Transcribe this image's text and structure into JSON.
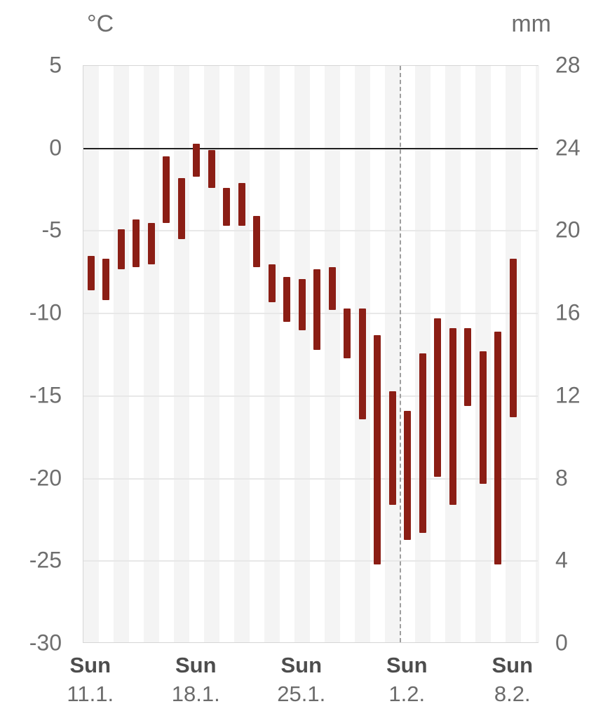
{
  "chart_data": {
    "type": "bar",
    "variant": "daily-temperature-range-meteogram",
    "title": "",
    "left_axis": {
      "label": "°C",
      "max": 5,
      "min": -30,
      "ticks": [
        5,
        0,
        -5,
        -10,
        -15,
        -20,
        -25,
        -30
      ]
    },
    "right_axis": {
      "label": "mm",
      "max": 28,
      "min": 0,
      "ticks": [
        28,
        24,
        20,
        16,
        12,
        8,
        4,
        0
      ]
    },
    "x_axis": {
      "ticks": [
        {
          "weekday": "Sun",
          "date": "11.1.",
          "day_index": 0
        },
        {
          "weekday": "Sun",
          "date": "18.1.",
          "day_index": 7
        },
        {
          "weekday": "Sun",
          "date": "25.1.",
          "day_index": 14
        },
        {
          "weekday": "Sun",
          "date": "1.2.",
          "day_index": 21
        },
        {
          "weekday": "Sun",
          "date": "8.2.",
          "day_index": 28
        }
      ]
    },
    "zero_line_temp": 0,
    "now_divider_day_index": 21,
    "days": [
      {
        "temp_max": -6.5,
        "temp_min": -8.6
      },
      {
        "temp_max": -6.7,
        "temp_min": -9.2
      },
      {
        "temp_max": -4.9,
        "temp_min": -7.3
      },
      {
        "temp_max": -4.3,
        "temp_min": -7.2
      },
      {
        "temp_max": -4.5,
        "temp_min": -7.0
      },
      {
        "temp_max": -0.5,
        "temp_min": -4.5
      },
      {
        "temp_max": -1.8,
        "temp_min": -5.5
      },
      {
        "temp_max": 0.3,
        "temp_min": -1.7
      },
      {
        "temp_max": -0.1,
        "temp_min": -2.4
      },
      {
        "temp_max": -2.4,
        "temp_min": -4.7
      },
      {
        "temp_max": -2.1,
        "temp_min": -4.7
      },
      {
        "temp_max": -4.1,
        "temp_min": -7.2
      },
      {
        "temp_max": -7.0,
        "temp_min": -9.3
      },
      {
        "temp_max": -7.8,
        "temp_min": -10.5
      },
      {
        "temp_max": -7.9,
        "temp_min": -11.0
      },
      {
        "temp_max": -7.3,
        "temp_min": -12.2
      },
      {
        "temp_max": -7.2,
        "temp_min": -9.8
      },
      {
        "temp_max": -9.7,
        "temp_min": -12.7
      },
      {
        "temp_max": -9.7,
        "temp_min": -16.4
      },
      {
        "temp_max": -11.3,
        "temp_min": -25.2
      },
      {
        "temp_max": -14.7,
        "temp_min": -21.6
      },
      {
        "temp_max": -15.9,
        "temp_min": -23.7
      },
      {
        "temp_max": -12.4,
        "temp_min": -23.3
      },
      {
        "temp_max": -10.3,
        "temp_min": -19.9
      },
      {
        "temp_max": -10.9,
        "temp_min": -21.6
      },
      {
        "temp_max": -10.9,
        "temp_min": -15.6
      },
      {
        "temp_max": -12.3,
        "temp_min": -20.3
      },
      {
        "temp_max": -11.1,
        "temp_min": -25.2
      },
      {
        "temp_max": -6.7,
        "temp_min": -16.3
      }
    ],
    "layout_hints": {
      "grid": "horizontal",
      "legend": "none",
      "day_stripes": "alternating, even days shaded"
    },
    "colors": {
      "bar": "#8b1e15",
      "stripe": "#f4f4f4",
      "grid": "#e8e8e8",
      "zero_line": "#1f1f1f",
      "now_line": "#9e9e9e",
      "plot_border": "#d6d6d6",
      "axis_text": "#6e6e6e",
      "weekday_text": "#4d4d4d",
      "date_text": "#6b6b6b",
      "background": "#ffffff"
    }
  }
}
